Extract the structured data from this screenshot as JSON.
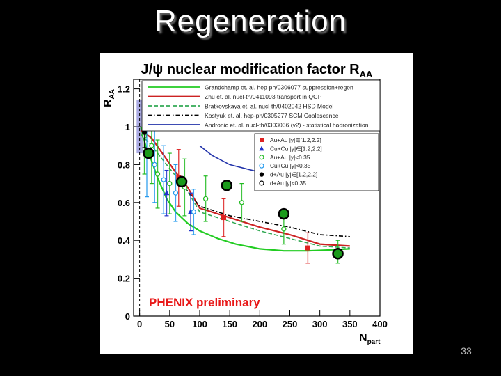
{
  "slide": {
    "title": "Regeneration",
    "page_number": "33"
  },
  "colors": {
    "background": "#000000",
    "green_marker": "#1a9a1a",
    "red": "#cc2222",
    "blue": "#2233cc"
  },
  "chart_data": {
    "type": "scatter",
    "title_main": "J/ψ nuclear modification factor R",
    "title_sub": "AA",
    "ylabel_main": "R",
    "ylabel_sub": "AA",
    "xlabel_main": "N",
    "xlabel_sub": "part",
    "watermark": "PHENIX preliminary",
    "xlim": [
      -10,
      400
    ],
    "ylim": [
      0,
      1.25
    ],
    "xticks": [
      0,
      50,
      100,
      150,
      200,
      250,
      300,
      350,
      400
    ],
    "yticks": [
      0,
      0.2,
      0.4,
      0.6,
      0.8,
      1,
      1.2
    ],
    "xtick_labels": [
      "0",
      "50",
      "100",
      "150",
      "200",
      "250",
      "300",
      "350",
      "400"
    ],
    "ytick_labels": [
      "0",
      "0.2",
      "0.4",
      "0.6",
      "0.8",
      "1",
      "1.2"
    ],
    "grid": false,
    "model_legend": [
      {
        "label": "Grandchamp et. al. hep-ph/0306077 suppression+regen",
        "color": "#22cc22",
        "style": "solid"
      },
      {
        "label": "Zhu et. al. nucl-th/0411093 transport in QGP",
        "color": "#cc2222",
        "style": "solid"
      },
      {
        "label": "Bratkovskaya et. al. nucl-th/0402042 HSD Model",
        "color": "#33aa55",
        "style": "dashed"
      },
      {
        "label": "Kostyuk et. al. hep-ph/0305277 SCM Coalescence",
        "color": "#000000",
        "style": "dashdot"
      },
      {
        "label": "Andronic et. al. nucl-th/0303036 (v2) - statistical hadronization",
        "color": "#2233aa",
        "style": "solid"
      }
    ],
    "data_legend": [
      {
        "label": "Au+Au |y|∈[1.2,2.2]",
        "color": "#dd2222",
        "marker": "square"
      },
      {
        "label": "Cu+Cu |y|∈[1.2,2.2]",
        "color": "#2233cc",
        "marker": "triangle"
      },
      {
        "label": "Au+Au |y|<0.35",
        "color": "#22bb22",
        "marker": "open-circle"
      },
      {
        "label": "Cu+Cu |y|<0.35",
        "color": "#2299ee",
        "marker": "open-circle"
      },
      {
        "label": "d+Au |y|∈[1.2,2.2]",
        "color": "#000000",
        "marker": "circle"
      },
      {
        "label": "d+Au |y|<0.35",
        "color": "#000000",
        "marker": "open-circle"
      }
    ],
    "model_curves": [
      {
        "name": "Grandchamp",
        "color": "#22cc22",
        "style": "solid",
        "x": [
          2,
          10,
          20,
          30,
          45,
          60,
          80,
          100,
          130,
          160,
          200,
          240,
          280,
          320,
          350
        ],
        "y": [
          1.0,
          0.9,
          0.82,
          0.73,
          0.62,
          0.55,
          0.49,
          0.45,
          0.41,
          0.38,
          0.355,
          0.345,
          0.345,
          0.35,
          0.355
        ]
      },
      {
        "name": "Zhu",
        "color": "#cc2222",
        "style": "solid",
        "x": [
          2,
          20,
          40,
          60,
          80,
          100,
          150,
          200,
          250,
          300,
          350
        ],
        "y": [
          0.98,
          0.94,
          0.85,
          0.76,
          0.68,
          0.57,
          0.52,
          0.47,
          0.43,
          0.38,
          0.37
        ]
      },
      {
        "name": "Bratkovskaya",
        "color": "#33aa55",
        "style": "dashed",
        "x": [
          2,
          20,
          40,
          60,
          80,
          100,
          150,
          200,
          250,
          300,
          350
        ],
        "y": [
          0.96,
          0.9,
          0.82,
          0.74,
          0.66,
          0.55,
          0.5,
          0.45,
          0.41,
          0.37,
          0.36
        ]
      },
      {
        "name": "Kostyuk",
        "color": "#000000",
        "style": "dashdot",
        "x": [
          60,
          80,
          100,
          150,
          200,
          250,
          300,
          350
        ],
        "y": [
          0.72,
          0.66,
          0.58,
          0.53,
          0.5,
          0.47,
          0.43,
          0.42
        ]
      },
      {
        "name": "Andronic",
        "color": "#2233aa",
        "style": "solid",
        "x": [
          100,
          120,
          150,
          200,
          250,
          300,
          350
        ],
        "y": [
          0.9,
          0.85,
          0.8,
          0.76,
          0.73,
          0.71,
          0.71
        ]
      }
    ],
    "points": [
      {
        "series": "Au+Au |y|∈[1.2,2.2]",
        "x": [
          65,
          140,
          280
        ],
        "y": [
          0.73,
          0.52,
          0.36
        ],
        "err": [
          0.15,
          0.1,
          0.08
        ]
      },
      {
        "series": "Cu+Cu |y|∈[1.2,2.2]",
        "x": [
          45,
          85
        ],
        "y": [
          0.65,
          0.55
        ],
        "err": [
          0.12,
          0.1
        ]
      },
      {
        "series": "Au+Au |y|<0.35",
        "x": [
          8,
          20,
          30,
          50,
          75,
          110,
          170,
          240,
          330
        ],
        "y": [
          0.95,
          0.9,
          0.75,
          0.7,
          0.68,
          0.62,
          0.6,
          0.46,
          0.34
        ],
        "err": [
          0.2,
          0.2,
          0.18,
          0.16,
          0.15,
          0.12,
          0.1,
          0.08,
          0.06
        ]
      },
      {
        "series": "Cu+Cu |y|<0.35",
        "x": [
          12,
          25,
          40,
          60,
          90
        ],
        "y": [
          0.85,
          0.8,
          0.72,
          0.65,
          0.55
        ],
        "err": [
          0.22,
          0.2,
          0.18,
          0.15,
          0.12
        ]
      },
      {
        "series": "d+Au |y|∈[1.2,2.2]",
        "x": [
          8
        ],
        "y": [
          0.97
        ],
        "err": [
          0.08
        ]
      }
    ],
    "overlay_markers": {
      "color": "#1a9a1a",
      "x": [
        15,
        70,
        145,
        240,
        330
      ],
      "y": [
        0.86,
        0.71,
        0.69,
        0.54,
        0.33
      ]
    },
    "reference_band": {
      "x": [
        -5,
        5
      ],
      "y_low": 0.86,
      "y_high": 1.14
    }
  }
}
